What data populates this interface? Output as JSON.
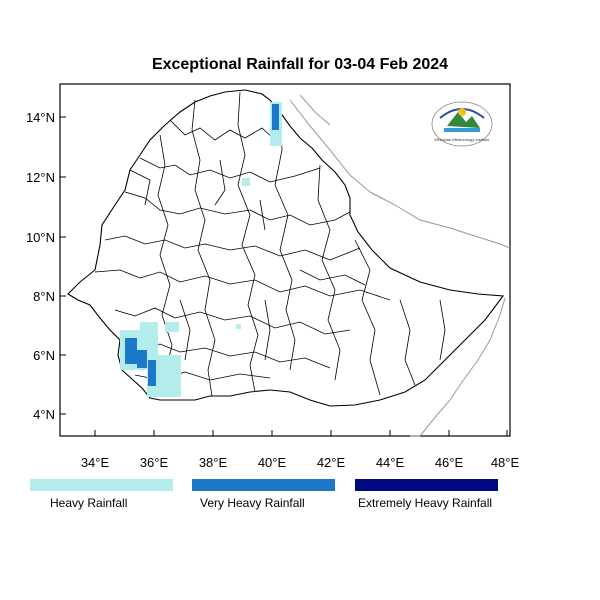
{
  "title": "Exceptional Rainfall for 03-04 Feb 2024",
  "y_ticks": [
    "14°N",
    "12°N",
    "10°N",
    "8°N",
    "6°N",
    "4°N"
  ],
  "x_ticks": [
    "34°E",
    "36°E",
    "38°E",
    "40°E",
    "42°E",
    "44°E",
    "46°E",
    "48°E"
  ],
  "legend": [
    {
      "label": "Heavy Rainfall",
      "color": "#b2ecec"
    },
    {
      "label": "Very Heavy Rainfall",
      "color": "#1e78c8"
    },
    {
      "label": "Extremely Heavy Rainfall",
      "color": "#000a80"
    }
  ],
  "colors": {
    "heavy": "#b2ecec",
    "very_heavy": "#1e78c8",
    "extreme": "#000a80",
    "boundary": "#000000",
    "neighbor": "#999999"
  },
  "logo": {
    "caption": "Ethiopian Meteorology Institute"
  }
}
